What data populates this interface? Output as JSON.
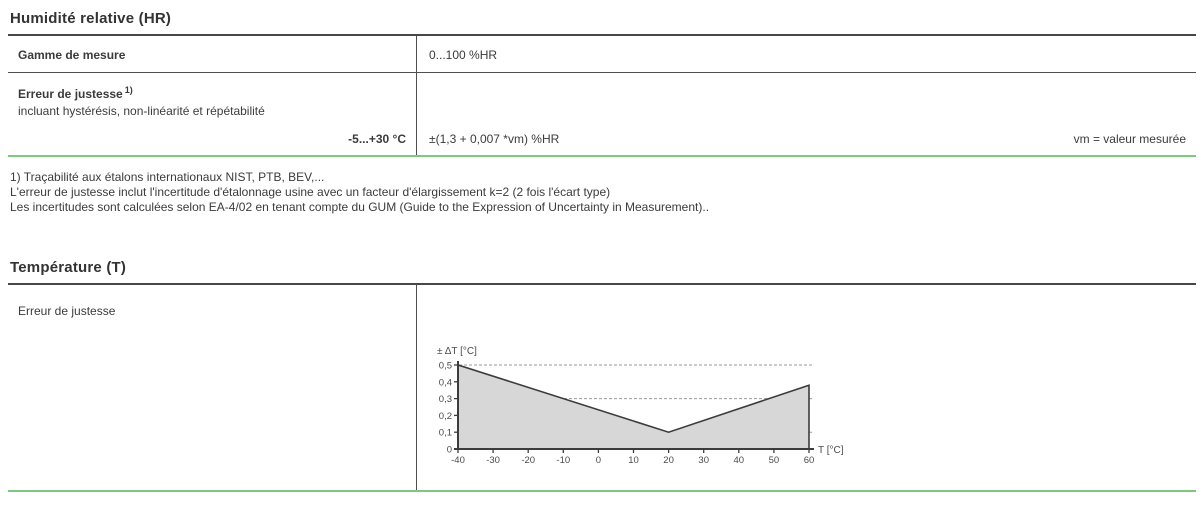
{
  "sections": {
    "humidity": {
      "title": "Humidité relative (HR)",
      "rows": [
        {
          "label": "Gamme de mesure",
          "value": "0...100 %HR"
        },
        {
          "label": "Erreur de justesse",
          "label_sup": "1)",
          "sublabel": "incluant hystérésis, non-linéarité et répétabilité",
          "condition": "-5...+30 °C",
          "value": "±(1,3 + 0,007 *vm) %HR",
          "note": "vm = valeur mesurée"
        }
      ],
      "footnotes": [
        "1) Traçabilité aux étalons internationaux NIST, PTB, BEV,...",
        "L'erreur de justesse inclut l'incertitude d'étalonnage usine avec un facteur d'élargissement k=2 (2 fois l'écart type)",
        "Les incertitudes sont calculées selon EA-4/02 en tenant compte du GUM (Guide to the Expression of Uncertainty in Measurement).."
      ]
    },
    "temperature": {
      "title": "Température (T)",
      "row_label": "Erreur de justesse"
    }
  },
  "colors": {
    "accent_green": "#7cc97e",
    "rule_dark": "#474747",
    "divider": "#4f4f4f",
    "text": "#3b3b3b",
    "chart_fill": "#d7d7d7",
    "chart_line": "#3c3c3c",
    "chart_grid": "#9a9a9a",
    "chart_text": "#4a4a4a"
  },
  "chart_data": {
    "type": "area",
    "title": "",
    "xlabel": "T [°C]",
    "ylabel": "± ΔT [°C]",
    "xlim": [
      -40,
      60
    ],
    "ylim": [
      0,
      0.5
    ],
    "x_ticks": [
      -40,
      -30,
      -20,
      -10,
      0,
      10,
      20,
      30,
      40,
      50,
      60
    ],
    "x_tick_labels": [
      "-40",
      "-30",
      "-20",
      "-10",
      "0",
      "10",
      "20",
      "30",
      "40",
      "50",
      "60"
    ],
    "y_ticks": [
      0,
      0.1,
      0.2,
      0.3,
      0.4,
      0.5
    ],
    "y_tick_labels": [
      "0",
      "0,1",
      "0,2",
      "0,3",
      "0,4",
      "0,5"
    ],
    "gridlines_y": [
      0.1,
      0.3,
      0.5
    ],
    "points": [
      {
        "x": -40,
        "y": 0.5
      },
      {
        "x": 20,
        "y": 0.1
      },
      {
        "x": 60,
        "y": 0.38
      }
    ],
    "grid": true,
    "legend": false
  }
}
